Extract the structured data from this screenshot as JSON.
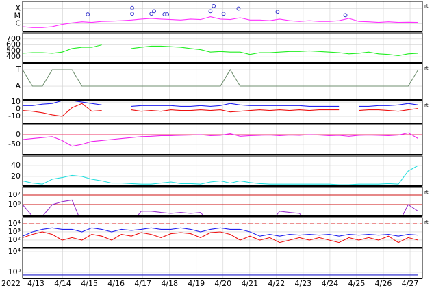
{
  "x_axis": {
    "xlim": [
      12.5,
      27.46
    ],
    "year_label": "2022",
    "xticks": [
      {
        "value": 13,
        "label": "4/13"
      },
      {
        "value": 14,
        "label": "4/14"
      },
      {
        "value": 15,
        "label": "4/15"
      },
      {
        "value": 16,
        "label": "4/16"
      },
      {
        "value": 17,
        "label": "4/17"
      },
      {
        "value": 18,
        "label": "4/18"
      },
      {
        "value": 19,
        "label": "4/19"
      },
      {
        "value": 20,
        "label": "4/20"
      },
      {
        "value": 21,
        "label": "4/21"
      },
      {
        "value": 22,
        "label": "4/22"
      },
      {
        "value": 23,
        "label": "4/23"
      },
      {
        "value": 24,
        "label": "4/24"
      },
      {
        "value": 25,
        "label": "4/25"
      },
      {
        "value": 26,
        "label": "4/26"
      },
      {
        "value": 27,
        "label": "4/27"
      }
    ]
  },
  "chart_data": [
    {
      "type": "line",
      "log_scale": true,
      "right_label": "rt",
      "ylim": [
        9.1e-08,
        0.00091
      ],
      "yticks": [
        {
          "value": 0.0001,
          "label": "X"
        },
        {
          "value": 1e-05,
          "label": "M"
        },
        {
          "value": 1e-06,
          "label": "C"
        }
      ],
      "x": [
        12.5,
        12.87,
        13.24,
        13.61,
        13.98,
        14.35,
        14.72,
        15.09,
        15.46,
        15.83,
        16.2,
        16.57,
        16.94,
        17.31,
        17.68,
        18.05,
        18.42,
        18.79,
        19.16,
        19.53,
        19.9,
        20.27,
        20.64,
        21.01,
        21.38,
        21.75,
        22.12,
        22.49,
        22.86,
        23.23,
        23.6,
        23.97,
        24.34,
        24.71,
        25.08,
        25.45,
        25.82,
        26.19,
        26.56,
        26.93,
        27.3
      ],
      "series": [
        {
          "color": "#ff33ff",
          "values": [
            4e-07,
            3e-07,
            3e-07,
            4e-07,
            8e-07,
            1.3e-06,
            1.8e-06,
            1.5e-06,
            2e-06,
            2.2e-06,
            2.5e-06,
            3e-06,
            4e-06,
            5e-06,
            4e-06,
            3.5e-06,
            3e-06,
            4e-06,
            3.5e-06,
            8e-06,
            4e-06,
            3.5e-06,
            6e-06,
            3e-06,
            3e-06,
            2.5e-06,
            4e-06,
            2.5e-06,
            2e-06,
            2.5e-06,
            2e-06,
            2e-06,
            2.5e-06,
            5e-06,
            2e-06,
            1.8e-06,
            1.5e-06,
            1.8e-06,
            1.5e-06,
            1.6e-06,
            1.5e-06
          ]
        }
      ],
      "markers": {
        "color": "#3333cc",
        "x": [
          14.94,
          16.6,
          16.6,
          17.32,
          17.42,
          17.81,
          17.91,
          19.53,
          19.65,
          20.02,
          20.58,
          22.04,
          24.58
        ],
        "values": [
          1.7e-05,
          0.00012,
          2e-05,
          2e-05,
          4.5e-05,
          1.7e-05,
          1.7e-05,
          4.5e-05,
          0.00022,
          2e-05,
          0.0001,
          3.7e-05,
          1.3e-05
        ]
      }
    },
    {
      "type": "line",
      "ylim": [
        300,
        800
      ],
      "yticks": [
        700,
        600,
        500,
        400
      ],
      "x": [
        12.5,
        12.87,
        13.24,
        13.61,
        13.98,
        14.35,
        14.72,
        15.09,
        15.46,
        15.83,
        16.2,
        16.57,
        16.94,
        17.31,
        17.68,
        18.05,
        18.42,
        18.79,
        19.16,
        19.53,
        19.9,
        20.27,
        20.64,
        21.01,
        21.38,
        21.75,
        22.12,
        22.49,
        22.86,
        23.23,
        23.6,
        23.97,
        24.34,
        24.71,
        25.08,
        25.45,
        25.82,
        26.19,
        26.56,
        26.93,
        27.3
      ],
      "series": [
        {
          "color": "#22ee22",
          "values": [
            460,
            470,
            470,
            460,
            480,
            540,
            560,
            560,
            600,
            null,
            null,
            540,
            560,
            580,
            580,
            570,
            560,
            540,
            520,
            480,
            490,
            480,
            480,
            440,
            470,
            470,
            480,
            490,
            490,
            500,
            490,
            480,
            470,
            450,
            460,
            480,
            450,
            440,
            420,
            450,
            460
          ]
        }
      ]
    },
    {
      "type": "line",
      "right_label": "rt",
      "ylim": [
        -0.83,
        1.375
      ],
      "yticks": [
        {
          "value": 1,
          "label": "T"
        },
        {
          "value": 0,
          "label": "A"
        }
      ],
      "x": [
        12.5,
        12.87,
        13.24,
        13.61,
        13.98,
        14.35,
        14.72,
        15.09,
        15.46,
        15.83,
        16.2,
        16.57,
        16.94,
        17.31,
        17.68,
        18.05,
        18.42,
        18.79,
        19.16,
        19.53,
        19.9,
        20.27,
        20.64,
        21.01,
        21.38,
        21.75,
        22.12,
        22.49,
        22.86,
        23.23,
        23.6,
        23.97,
        24.34,
        24.71,
        25.08,
        25.45,
        25.82,
        26.19,
        26.56,
        26.93,
        27.3
      ],
      "series": [
        {
          "color": "#6f8f6f",
          "values": [
            1,
            0,
            0,
            1,
            1,
            1,
            0,
            0,
            0,
            0,
            0,
            0,
            0,
            0,
            0,
            0,
            0,
            0,
            0,
            0,
            0,
            1,
            0,
            0,
            0,
            0,
            0,
            0,
            0,
            0,
            0,
            0,
            0,
            0,
            0,
            0,
            0,
            0,
            0,
            0,
            1
          ]
        }
      ]
    },
    {
      "type": "line",
      "right_label": "rt",
      "ylim": [
        -20.5,
        12
      ],
      "yticks": [
        10,
        0,
        -10
      ],
      "hlines": [
        0
      ],
      "hline_color": "#ee1111",
      "x": [
        12.5,
        12.87,
        13.24,
        13.61,
        13.98,
        14.35,
        14.72,
        15.09,
        15.46,
        15.83,
        16.2,
        16.57,
        16.94,
        17.31,
        17.68,
        18.05,
        18.42,
        18.79,
        19.16,
        19.53,
        19.9,
        20.27,
        20.64,
        21.01,
        21.38,
        21.75,
        22.12,
        22.49,
        22.86,
        23.23,
        23.6,
        23.97,
        24.34,
        24.71,
        25.08,
        25.45,
        25.82,
        26.19,
        26.56,
        26.93,
        27.3
      ],
      "series": [
        {
          "color": "#2222ee",
          "values": [
            5,
            5,
            7,
            8,
            12,
            12,
            10,
            8,
            6,
            null,
            null,
            4,
            5,
            5,
            5,
            5,
            4,
            4,
            5,
            4,
            5,
            8,
            6,
            5,
            5,
            5,
            5,
            5,
            5,
            4,
            4,
            4,
            4,
            null,
            4,
            4,
            5,
            5,
            6,
            8,
            6
          ]
        },
        {
          "color": "#ee1111",
          "values": [
            -2,
            -3,
            -5,
            -8,
            -10,
            2,
            8,
            -3,
            -2,
            null,
            null,
            -1,
            -3,
            -2,
            -3,
            -1,
            -2,
            -2,
            -1,
            -2,
            -1,
            -4,
            -3,
            -2,
            -1,
            -2,
            -1,
            -2,
            -1,
            -2,
            -1,
            -1,
            -1,
            null,
            -2,
            -1,
            -1,
            -2,
            -3,
            -1,
            1
          ]
        }
      ]
    },
    {
      "type": "line",
      "ylim": [
        -104,
        54
      ],
      "yticks": [
        0,
        -50
      ],
      "hlines": [
        0
      ],
      "hline_color": "#ee3366",
      "x": [
        12.5,
        12.87,
        13.24,
        13.61,
        13.98,
        14.35,
        14.72,
        15.09,
        15.46,
        15.83,
        16.2,
        16.57,
        16.94,
        17.31,
        17.68,
        18.05,
        18.42,
        18.79,
        19.16,
        19.53,
        19.9,
        20.27,
        20.64,
        21.01,
        21.38,
        21.75,
        22.12,
        22.49,
        22.86,
        23.23,
        23.6,
        23.97,
        24.34,
        24.71,
        25.08,
        25.45,
        25.82,
        26.19,
        26.56,
        26.93,
        27.3
      ],
      "series": [
        {
          "color": "#ee22ee",
          "values": [
            -25,
            -20,
            -15,
            -10,
            -30,
            -60,
            -50,
            -35,
            -30,
            -25,
            -20,
            -15,
            -10,
            -8,
            -5,
            -5,
            -3,
            -2,
            0,
            -5,
            -3,
            5,
            -8,
            -5,
            -3,
            -2,
            -5,
            -2,
            -3,
            0,
            -2,
            -5,
            -3,
            -8,
            -3,
            -2,
            -3,
            -5,
            -2,
            10,
            -20
          ]
        }
      ]
    },
    {
      "type": "line",
      "ylim": [
        2.5,
        57.5
      ],
      "yticks": [
        40,
        20
      ],
      "x": [
        12.5,
        12.87,
        13.24,
        13.61,
        13.98,
        14.35,
        14.72,
        15.09,
        15.46,
        15.83,
        16.2,
        16.57,
        16.94,
        17.31,
        17.68,
        18.05,
        18.42,
        18.79,
        19.16,
        19.53,
        19.9,
        20.27,
        20.64,
        21.01,
        21.38,
        21.75,
        22.12,
        22.49,
        22.86,
        23.23,
        23.6,
        23.97,
        24.34,
        24.71,
        25.08,
        25.45,
        25.82,
        26.19,
        26.56,
        26.93,
        27.3
      ],
      "series": [
        {
          "color": "#22dddd",
          "values": [
            12,
            8,
            6,
            15,
            18,
            22,
            20,
            15,
            12,
            8,
            8,
            7,
            6,
            6,
            8,
            10,
            7,
            7,
            6,
            10,
            12,
            8,
            12,
            9,
            7,
            6,
            6,
            6,
            6,
            6,
            6,
            6,
            5,
            5,
            6,
            6,
            6,
            7,
            6,
            30,
            40
          ]
        }
      ]
    },
    {
      "type": "line",
      "log_scale": true,
      "right_label": "rt",
      "ylim": [
        61660,
        61660000
      ],
      "yticks": [
        {
          "value": 10000000,
          "label": "10⁷"
        },
        {
          "value": 1000000,
          "label": "10⁶"
        }
      ],
      "hlines": [
        10000000,
        1000000
      ],
      "hline_color": "#cc1111",
      "x": [
        12.5,
        12.87,
        13.24,
        13.61,
        13.98,
        14.35,
        14.72,
        15.09,
        15.46,
        15.83,
        16.2,
        16.57,
        16.94,
        17.31,
        17.68,
        18.05,
        18.42,
        18.79,
        19.16,
        19.53,
        19.9,
        20.27,
        20.64,
        21.01,
        21.38,
        21.75,
        22.12,
        22.49,
        22.86,
        23.23,
        23.6,
        23.97,
        24.34,
        24.71,
        25.08,
        25.45,
        25.82,
        26.19,
        26.56,
        26.93,
        27.3
      ],
      "series": [
        {
          "color": "#9933cc",
          "values": [
            1000000,
            60000,
            60000,
            1000000,
            2000000,
            3000000,
            10000,
            10000,
            10000,
            10000,
            10000,
            10000,
            200000,
            200000,
            150000,
            120000,
            150000,
            120000,
            150000,
            10000,
            10000,
            10000,
            10000,
            10000,
            10000,
            10000,
            200000,
            150000,
            120000,
            10000,
            10000,
            10000,
            10000,
            10000,
            10000,
            10000,
            10000,
            10000,
            10000,
            1000000,
            200000
          ]
        }
      ]
    },
    {
      "type": "line",
      "log_scale": true,
      "right_label": "rt",
      "ylim": [
        12,
        56230
      ],
      "yticks": [
        {
          "value": 10000,
          "label": "10⁴"
        },
        {
          "value": 1000,
          "label": "10³"
        },
        {
          "value": 100,
          "label": "10²"
        }
      ],
      "hlines": [
        10000
      ],
      "hline_color": "#dd2222",
      "hline_dashed": true,
      "x": [
        12.5,
        12.87,
        13.24,
        13.61,
        13.98,
        14.35,
        14.72,
        15.09,
        15.46,
        15.83,
        16.2,
        16.57,
        16.94,
        17.31,
        17.68,
        18.05,
        18.42,
        18.79,
        19.16,
        19.53,
        19.9,
        20.27,
        20.64,
        21.01,
        21.38,
        21.75,
        22.12,
        22.49,
        22.86,
        23.23,
        23.6,
        23.97,
        24.34,
        24.71,
        25.08,
        25.45,
        25.82,
        26.19,
        26.56,
        26.93,
        27.3
      ],
      "series": [
        {
          "color": "#2222ee",
          "values": [
            300,
            1000,
            2000,
            3000,
            2000,
            2000,
            1000,
            3000,
            2000,
            1000,
            2000,
            1500,
            2000,
            3000,
            2000,
            2000,
            3000,
            2000,
            1000,
            2000,
            3000,
            2000,
            2000,
            1000,
            300,
            500,
            300,
            500,
            400,
            500,
            400,
            500,
            300,
            500,
            400,
            500,
            400,
            500,
            300,
            500,
            400
          ]
        },
        {
          "color": "#ee1111",
          "values": [
            200,
            500,
            1000,
            500,
            100,
            200,
            100,
            500,
            300,
            100,
            500,
            300,
            800,
            500,
            200,
            600,
            800,
            600,
            200,
            800,
            1000,
            500,
            100,
            300,
            100,
            200,
            50,
            100,
            200,
            100,
            200,
            100,
            50,
            200,
            100,
            200,
            100,
            300,
            50,
            200,
            100
          ]
        }
      ]
    },
    {
      "type": "line",
      "log_scale": true,
      "ylim": [
        0.063,
        46420
      ],
      "yticks": [
        {
          "value": 10000,
          "label": "10⁴"
        },
        {
          "value": 1,
          "label": "10⁰"
        }
      ],
      "x": [
        12.5,
        12.87,
        13.24,
        13.61,
        13.98,
        14.35,
        14.72,
        15.09,
        15.46,
        15.83,
        16.2,
        16.57,
        16.94,
        17.31,
        17.68,
        18.05,
        18.42,
        18.79,
        19.16,
        19.53,
        19.9,
        20.27,
        20.64,
        21.01,
        21.38,
        21.75,
        22.12,
        22.49,
        22.86,
        23.23,
        23.6,
        23.97,
        24.34,
        24.71,
        25.08,
        25.45,
        25.82,
        26.19,
        26.56,
        26.93,
        27.3
      ],
      "series": [
        {
          "color": "#2222cc",
          "values": [
            0.3,
            0.3,
            0.3,
            0.3,
            0.3,
            0.3,
            0.3,
            0.3,
            0.3,
            0.3,
            0.3,
            0.3,
            0.3,
            0.3,
            0.3,
            0.3,
            0.3,
            0.3,
            0.3,
            0.3,
            0.3,
            0.3,
            0.3,
            0.3,
            0.3,
            0.3,
            0.3,
            0.3,
            0.3,
            0.3,
            0.3,
            0.3,
            0.3,
            0.3,
            0.3,
            0.3,
            0.3,
            0.3,
            0.3,
            0.3,
            0.3
          ]
        }
      ]
    }
  ]
}
